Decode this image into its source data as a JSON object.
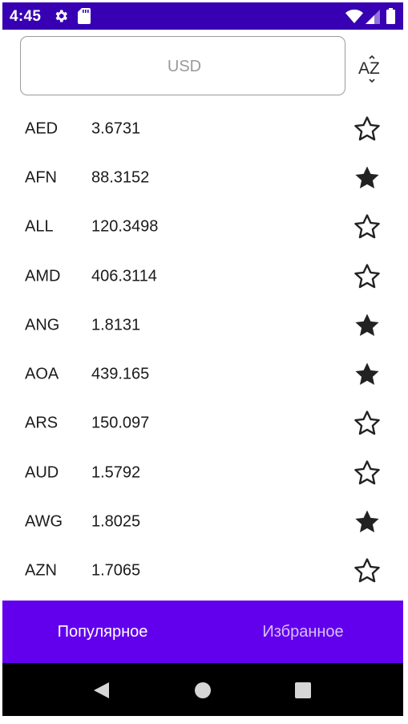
{
  "status_bar": {
    "time": "4:45",
    "icons": [
      "gear-icon",
      "sd-card-icon",
      "wifi-icon",
      "signal-icon",
      "battery-icon"
    ]
  },
  "search": {
    "placeholder": "USD"
  },
  "sort_button": {
    "icon": "sort-az-icon",
    "label": "AZ"
  },
  "rates": [
    {
      "code": "AED",
      "rate": "3.6731",
      "favorite": false
    },
    {
      "code": "AFN",
      "rate": "88.3152",
      "favorite": true
    },
    {
      "code": "ALL",
      "rate": "120.3498",
      "favorite": false
    },
    {
      "code": "AMD",
      "rate": "406.3114",
      "favorite": false
    },
    {
      "code": "ANG",
      "rate": "1.8131",
      "favorite": true
    },
    {
      "code": "AOA",
      "rate": "439.165",
      "favorite": true
    },
    {
      "code": "ARS",
      "rate": "150.097",
      "favorite": false
    },
    {
      "code": "AUD",
      "rate": "1.5792",
      "favorite": false
    },
    {
      "code": "AWG",
      "rate": "1.8025",
      "favorite": true
    },
    {
      "code": "AZN",
      "rate": "1.7065",
      "favorite": false
    }
  ],
  "bottom_nav": {
    "tabs": [
      {
        "label": "Популярное",
        "active": true
      },
      {
        "label": "Избранное",
        "active": false
      }
    ]
  },
  "colors": {
    "status_bar": "#3700b3",
    "bottom_nav": "#6200ee",
    "star": "#222222",
    "system_nav": "#000000"
  },
  "system_nav": {
    "icons": [
      "back-icon",
      "home-icon",
      "recents-icon"
    ]
  }
}
